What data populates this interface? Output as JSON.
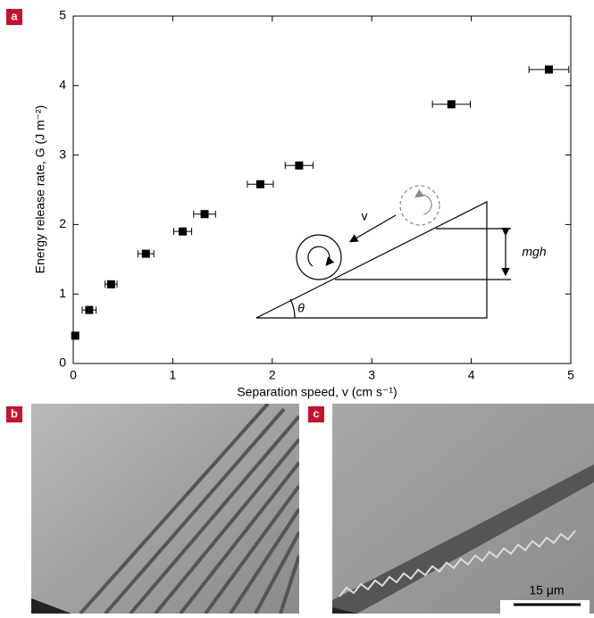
{
  "chart_data": {
    "type": "scatter",
    "x_label": "Separation speed, v (cm s⁻¹)",
    "y_label": "Energy release rate, G (J m⁻²)",
    "x": [
      0.02,
      0.16,
      0.38,
      0.73,
      1.1,
      1.32,
      1.88,
      2.27,
      3.8,
      4.78
    ],
    "values": [
      0.4,
      0.77,
      1.14,
      1.58,
      1.9,
      2.15,
      2.58,
      2.85,
      3.73,
      4.23
    ],
    "x_err": [
      0.0,
      0.07,
      0.06,
      0.08,
      0.09,
      0.11,
      0.13,
      0.14,
      0.19,
      0.2
    ],
    "color": "#000000",
    "xlim": [
      0,
      5
    ],
    "ylim": [
      0,
      5
    ],
    "xticks": [
      0,
      1,
      2,
      3,
      4,
      5
    ],
    "yticks": [
      0,
      1,
      2,
      3,
      4,
      5
    ],
    "grid": false,
    "annotations": {
      "velocity": "v",
      "height": "mgh",
      "angle": "θ"
    }
  },
  "panels": {
    "labels": [
      "a",
      "b",
      "c"
    ],
    "scale_bar": "15 μm"
  }
}
